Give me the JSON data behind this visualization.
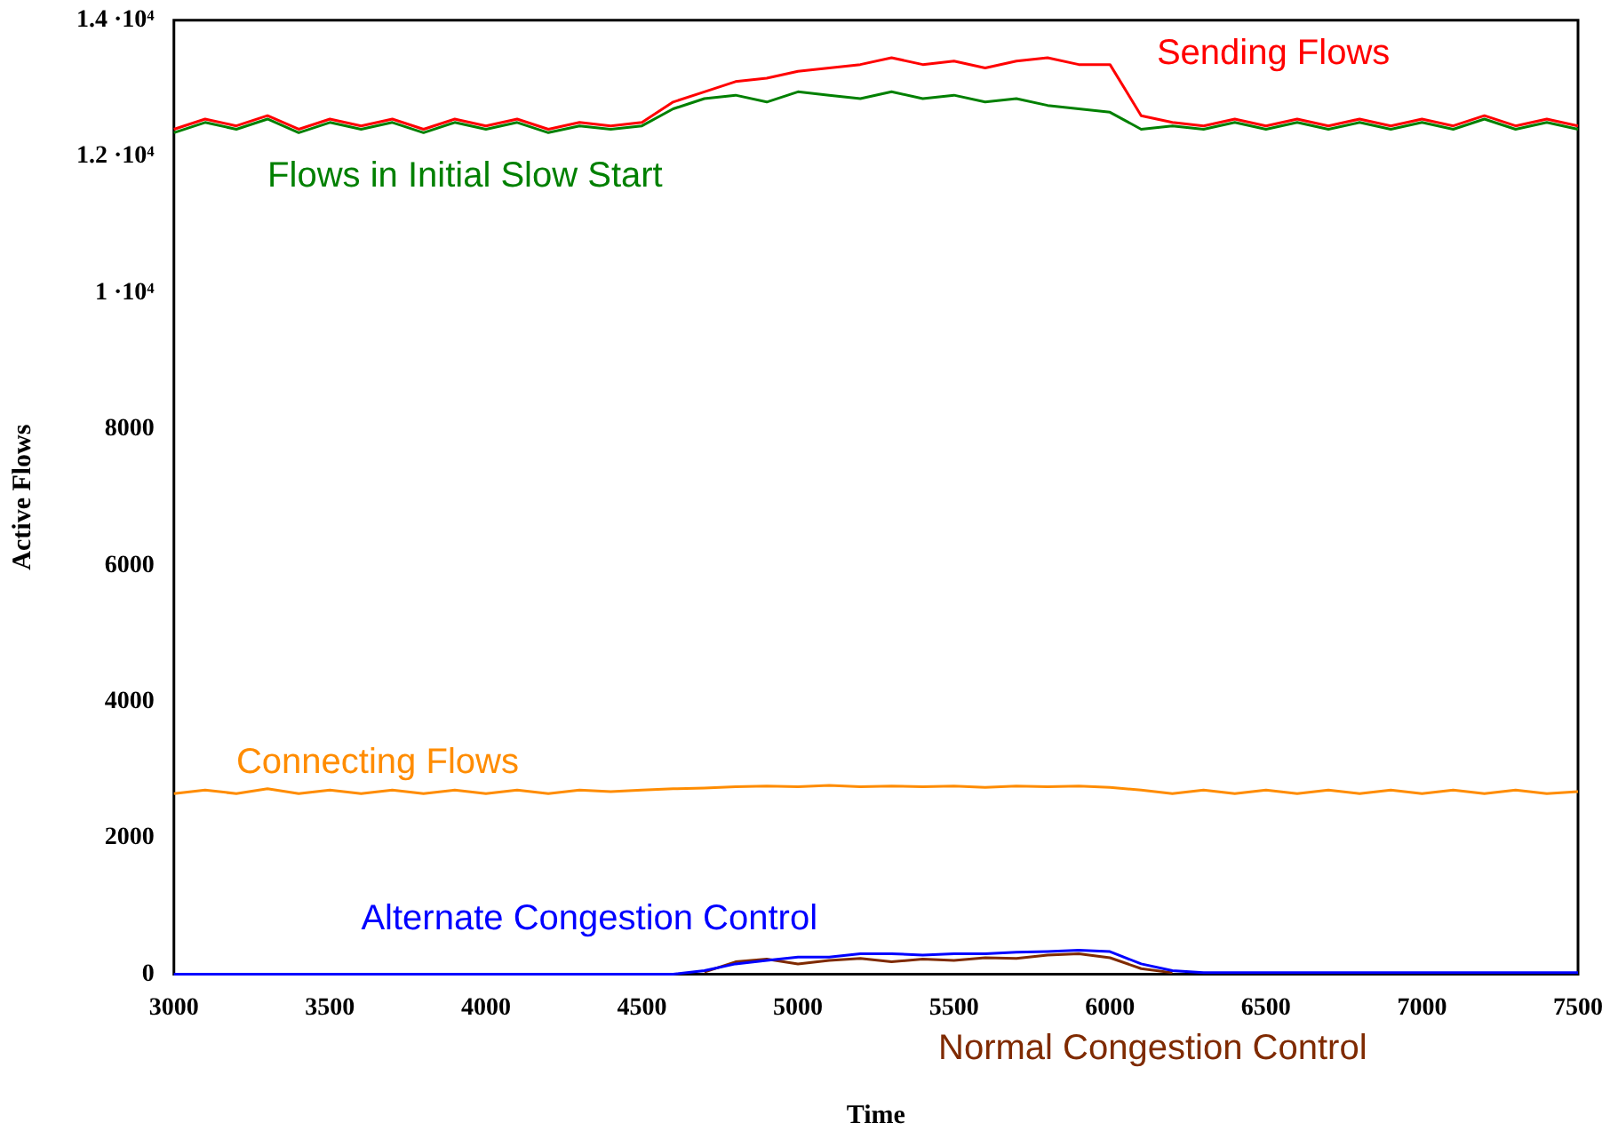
{
  "chart_data": {
    "type": "line",
    "xlabel": "Time",
    "ylabel": "Active Flows",
    "x": [
      3000,
      3100,
      3200,
      3300,
      3400,
      3500,
      3600,
      3700,
      3800,
      3900,
      4000,
      4100,
      4200,
      4300,
      4400,
      4500,
      4600,
      4700,
      4800,
      4900,
      5000,
      5100,
      5200,
      5300,
      5400,
      5500,
      5600,
      5700,
      5800,
      5900,
      6000,
      6100,
      6200,
      6300,
      6400,
      6500,
      6600,
      6700,
      6800,
      6900,
      7000,
      7100,
      7200,
      7300,
      7400,
      7500
    ],
    "series": [
      {
        "name": "Sending Flows",
        "color": "#ff0000",
        "values": [
          12400,
          12550,
          12450,
          12600,
          12400,
          12550,
          12450,
          12550,
          12400,
          12550,
          12450,
          12550,
          12400,
          12500,
          12450,
          12500,
          12800,
          12950,
          13100,
          13150,
          13250,
          13300,
          13350,
          13450,
          13350,
          13400,
          13300,
          13400,
          13450,
          13350,
          13350,
          12600,
          12500,
          12450,
          12550,
          12450,
          12550,
          12450,
          12550,
          12450,
          12550,
          12450,
          12600,
          12450,
          12550,
          12450
        ]
      },
      {
        "name": "Flows in Initial Slow Start",
        "color": "#008000",
        "values": [
          12350,
          12500,
          12400,
          12550,
          12350,
          12500,
          12400,
          12500,
          12350,
          12500,
          12400,
          12500,
          12350,
          12450,
          12400,
          12450,
          12700,
          12850,
          12900,
          12800,
          12950,
          12900,
          12850,
          12950,
          12850,
          12900,
          12800,
          12850,
          12750,
          12700,
          12650,
          12400,
          12450,
          12400,
          12500,
          12400,
          12500,
          12400,
          12500,
          12400,
          12500,
          12400,
          12550,
          12400,
          12500,
          12400
        ]
      },
      {
        "name": "Connecting Flows",
        "color": "#ff8c00",
        "values": [
          2650,
          2700,
          2650,
          2720,
          2650,
          2700,
          2650,
          2700,
          2650,
          2700,
          2650,
          2700,
          2650,
          2700,
          2680,
          2700,
          2720,
          2730,
          2750,
          2760,
          2750,
          2770,
          2750,
          2760,
          2750,
          2760,
          2740,
          2760,
          2750,
          2760,
          2740,
          2700,
          2650,
          2700,
          2650,
          2700,
          2650,
          2700,
          2650,
          2700,
          2650,
          2700,
          2650,
          2700,
          2650,
          2680
        ]
      },
      {
        "name": "Alternate Congestion Control",
        "color": "#0000ff",
        "values": [
          0,
          0,
          0,
          0,
          0,
          0,
          0,
          0,
          0,
          0,
          0,
          0,
          0,
          0,
          0,
          0,
          0,
          50,
          150,
          200,
          250,
          250,
          300,
          300,
          280,
          300,
          300,
          320,
          330,
          350,
          330,
          150,
          50,
          20,
          20,
          20,
          20,
          20,
          20,
          20,
          20,
          20,
          20,
          20,
          20,
          20
        ]
      },
      {
        "name": "Normal Congestion Control",
        "color": "#7f2a00",
        "values": [
          null,
          null,
          null,
          null,
          null,
          null,
          null,
          null,
          null,
          null,
          null,
          null,
          null,
          null,
          null,
          null,
          null,
          30,
          180,
          220,
          150,
          200,
          230,
          180,
          220,
          200,
          240,
          230,
          280,
          300,
          240,
          80,
          20,
          null,
          null,
          null,
          null,
          null,
          null,
          null,
          null,
          null,
          null,
          null,
          null,
          null
        ]
      }
    ],
    "xlim": [
      3000,
      7500
    ],
    "xticks": [
      3000,
      3500,
      4000,
      4500,
      5000,
      5500,
      6000,
      6500,
      7000,
      7500
    ],
    "ylim": [
      0,
      14000
    ],
    "yticks": [
      0,
      2000,
      4000,
      6000,
      8000,
      {
        "value": 10000,
        "label": "1 ·10⁴"
      },
      {
        "value": 12000,
        "label": "1.2 ·10⁴"
      },
      {
        "value": 14000,
        "label": "1.4 ·10⁴"
      }
    ],
    "grid": false,
    "legend": false,
    "marker": "none",
    "line_style": "solid"
  }
}
